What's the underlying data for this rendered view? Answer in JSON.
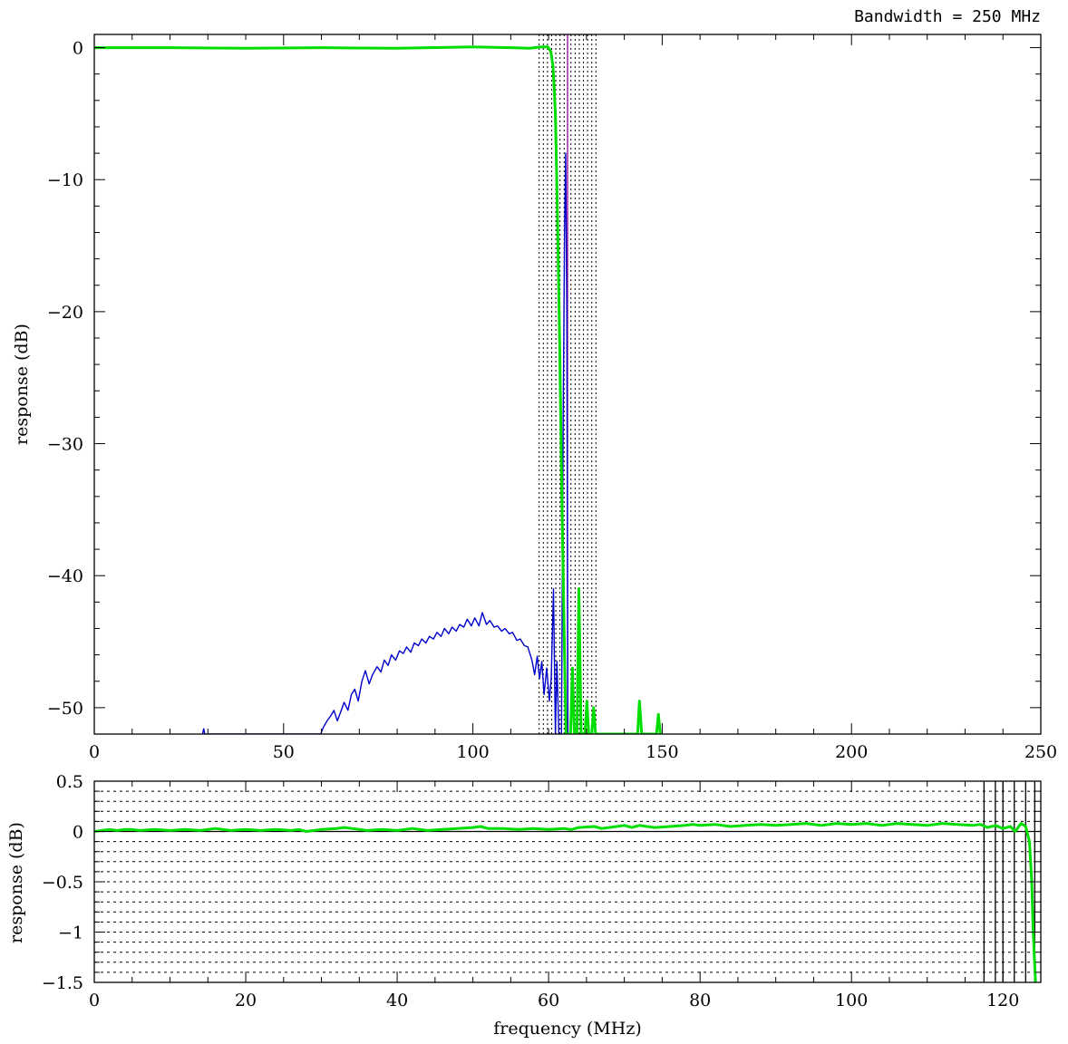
{
  "chart_data": [
    {
      "type": "line",
      "annotation": "Bandwidth = 250 MHz",
      "ylabel": "response (dB)",
      "xlabel": "",
      "xlim": [
        0,
        250
      ],
      "ylim": [
        -52,
        1
      ],
      "xticks": [
        0,
        50,
        100,
        150,
        200,
        250
      ],
      "yticks": [
        0,
        -10,
        -20,
        -30,
        -40,
        -50
      ],
      "vlines_dotted": [
        117.5,
        118.6,
        119.7,
        120.8,
        121.9,
        123.0,
        124.1,
        125.9,
        127.0,
        128.1,
        129.2,
        130.3,
        131.4,
        132.5
      ],
      "vlines_solid": [
        {
          "x": 125.0,
          "color": "#8b008b"
        }
      ],
      "series": [
        {
          "color": "#0000cc",
          "points": [
            [
              28.6,
              -52
            ],
            [
              28.9,
              -51.6
            ],
            [
              29.2,
              -52
            ],
            [
              59.8,
              -52
            ],
            [
              60.5,
              -51.5
            ],
            [
              61.5,
              -51.0
            ],
            [
              62.5,
              -50.6
            ],
            [
              63.3,
              -50.2
            ],
            [
              64.2,
              -51.0
            ],
            [
              65.1,
              -50.3
            ],
            [
              66.0,
              -49.6
            ],
            [
              67.0,
              -50.2
            ],
            [
              67.9,
              -49.0
            ],
            [
              68.8,
              -48.6
            ],
            [
              69.7,
              -49.5
            ],
            [
              70.7,
              -48.0
            ],
            [
              71.6,
              -47.2
            ],
            [
              72.6,
              -48.2
            ],
            [
              73.5,
              -47.5
            ],
            [
              74.7,
              -46.9
            ],
            [
              75.7,
              -47.3
            ],
            [
              76.6,
              -46.4
            ],
            [
              77.6,
              -46.8
            ],
            [
              78.5,
              -46.0
            ],
            [
              79.6,
              -46.4
            ],
            [
              80.6,
              -45.7
            ],
            [
              81.6,
              -45.9
            ],
            [
              82.5,
              -45.4
            ],
            [
              83.6,
              -45.8
            ],
            [
              84.5,
              -45.1
            ],
            [
              85.6,
              -45.3
            ],
            [
              86.5,
              -44.8
            ],
            [
              87.6,
              -45.1
            ],
            [
              88.5,
              -44.6
            ],
            [
              89.6,
              -44.8
            ],
            [
              90.5,
              -44.3
            ],
            [
              91.6,
              -44.6
            ],
            [
              92.5,
              -44.0
            ],
            [
              93.6,
              -44.4
            ],
            [
              94.5,
              -43.9
            ],
            [
              95.6,
              -44.2
            ],
            [
              96.5,
              -43.7
            ],
            [
              97.6,
              -43.9
            ],
            [
              98.5,
              -43.3
            ],
            [
              99.6,
              -43.8
            ],
            [
              100.5,
              -43.2
            ],
            [
              101.6,
              -43.8
            ],
            [
              102.5,
              -42.8
            ],
            [
              103.6,
              -43.7
            ],
            [
              104.5,
              -43.4
            ],
            [
              105.6,
              -43.9
            ],
            [
              106.5,
              -43.8
            ],
            [
              107.6,
              -44.2
            ],
            [
              108.5,
              -44.0
            ],
            [
              109.6,
              -44.4
            ],
            [
              110.5,
              -44.3
            ],
            [
              111.6,
              -44.9
            ],
            [
              112.5,
              -44.8
            ],
            [
              113.6,
              -45.3
            ],
            [
              114.5,
              -45.4
            ],
            [
              115.6,
              -46.4
            ],
            [
              116.3,
              -47.5
            ],
            [
              117.0,
              -46.1
            ],
            [
              117.6,
              -47.8
            ],
            [
              118.2,
              -46.5
            ],
            [
              118.8,
              -49.0
            ],
            [
              119.5,
              -47.0
            ],
            [
              120.2,
              -49.5
            ],
            [
              120.7,
              -47.8
            ],
            [
              121.3,
              -41.0
            ],
            [
              121.8,
              -52
            ],
            [
              122.2,
              -46.5
            ],
            [
              122.7,
              -52
            ],
            [
              123.4,
              -52
            ],
            [
              123.8,
              -30
            ],
            [
              124.2,
              -14
            ],
            [
              124.5,
              -8
            ],
            [
              124.8,
              -20
            ],
            [
              125.1,
              -52
            ]
          ]
        },
        {
          "color": "#00dd00",
          "points": [
            [
              0,
              0
            ],
            [
              20,
              0
            ],
            [
              40,
              -0.05
            ],
            [
              60,
              0
            ],
            [
              80,
              -0.05
            ],
            [
              100,
              0.05
            ],
            [
              110,
              0
            ],
            [
              115,
              -0.05
            ],
            [
              118,
              0.05
            ],
            [
              119,
              0.05
            ],
            [
              119.8,
              0.05
            ],
            [
              120.6,
              -0.3
            ],
            [
              121.2,
              -1.5
            ],
            [
              121.8,
              -5
            ],
            [
              122.3,
              -12
            ],
            [
              122.9,
              -22
            ],
            [
              123.5,
              -34
            ],
            [
              124.2,
              -46
            ],
            [
              124.6,
              -52
            ],
            [
              125.8,
              -52
            ],
            [
              126.3,
              -47
            ],
            [
              126.8,
              -52
            ],
            [
              127.5,
              -52
            ],
            [
              128.0,
              -41
            ],
            [
              128.6,
              -52
            ],
            [
              129.6,
              -52
            ],
            [
              130.1,
              -49.5
            ],
            [
              130.6,
              -52
            ],
            [
              131.4,
              -52
            ],
            [
              131.9,
              -50
            ],
            [
              132.4,
              -52
            ],
            [
              143.5,
              -52
            ],
            [
              144.0,
              -49.5
            ],
            [
              144.6,
              -52
            ],
            [
              148.5,
              -52
            ],
            [
              149.0,
              -50.5
            ],
            [
              149.5,
              -52
            ]
          ]
        }
      ]
    },
    {
      "type": "line",
      "xlabel": "frequency (MHz)",
      "ylabel": "response (dB)",
      "xlim": [
        0,
        125
      ],
      "ylim": [
        -1.5,
        0.5
      ],
      "xticks": [
        0,
        20,
        40,
        60,
        80,
        100,
        120
      ],
      "yticks": [
        0.5,
        0,
        -0.5,
        -1,
        -1.5
      ],
      "yticks_labels": [
        "0.5",
        "0",
        "−0.5",
        "−1",
        "−1.5"
      ],
      "hgrid_dotted_step": 0.1,
      "vlines_solid": [
        117.5,
        119.0,
        120.0,
        121.5,
        123.0,
        124.2
      ],
      "series": [
        {
          "color": "#00dd00",
          "points": [
            [
              0,
              0
            ],
            [
              1,
              0.01
            ],
            [
              2,
              0.02
            ],
            [
              3,
              0.01
            ],
            [
              4,
              0.02
            ],
            [
              5,
              0.02
            ],
            [
              6,
              0.01
            ],
            [
              8,
              0.02
            ],
            [
              10,
              0.01
            ],
            [
              12,
              0.02
            ],
            [
              14,
              0.01
            ],
            [
              16,
              0.03
            ],
            [
              17,
              0.02
            ],
            [
              18,
              0.01
            ],
            [
              20,
              0.02
            ],
            [
              22,
              0.01
            ],
            [
              24,
              0.02
            ],
            [
              26,
              0.01
            ],
            [
              27,
              0.02
            ],
            [
              28,
              0.0
            ],
            [
              29,
              0.01
            ],
            [
              30,
              0.02
            ],
            [
              32,
              0.03
            ],
            [
              33,
              0.04
            ],
            [
              34,
              0.03
            ],
            [
              36,
              0.01
            ],
            [
              38,
              0.02
            ],
            [
              40,
              0.01
            ],
            [
              42,
              0.03
            ],
            [
              44,
              0.01
            ],
            [
              46,
              0.02
            ],
            [
              48,
              0.03
            ],
            [
              50,
              0.04
            ],
            [
              51,
              0.05
            ],
            [
              52,
              0.03
            ],
            [
              54,
              0.03
            ],
            [
              56,
              0.02
            ],
            [
              58,
              0.03
            ],
            [
              60,
              0.02
            ],
            [
              62,
              0.03
            ],
            [
              63,
              0.02
            ],
            [
              64,
              0.04
            ],
            [
              66,
              0.05
            ],
            [
              67,
              0.03
            ],
            [
              68,
              0.04
            ],
            [
              70,
              0.06
            ],
            [
              71,
              0.04
            ],
            [
              72,
              0.06
            ],
            [
              74,
              0.04
            ],
            [
              76,
              0.05
            ],
            [
              78,
              0.06
            ],
            [
              79,
              0.07
            ],
            [
              80,
              0.06
            ],
            [
              82,
              0.07
            ],
            [
              84,
              0.05
            ],
            [
              86,
              0.06
            ],
            [
              88,
              0.07
            ],
            [
              90,
              0.06
            ],
            [
              92,
              0.07
            ],
            [
              94,
              0.08
            ],
            [
              96,
              0.06
            ],
            [
              98,
              0.08
            ],
            [
              100,
              0.07
            ],
            [
              102,
              0.08
            ],
            [
              104,
              0.06
            ],
            [
              106,
              0.08
            ],
            [
              108,
              0.07
            ],
            [
              110,
              0.06
            ],
            [
              112,
              0.08
            ],
            [
              114,
              0.07
            ],
            [
              116,
              0.06
            ],
            [
              117,
              0.07
            ],
            [
              118,
              0.04
            ],
            [
              119,
              0.06
            ],
            [
              120,
              0.03
            ],
            [
              121,
              0.05
            ],
            [
              121.6,
              0.0
            ],
            [
              122.4,
              0.08
            ],
            [
              123.0,
              0.05
            ],
            [
              123.5,
              -0.1
            ],
            [
              123.8,
              -0.5
            ],
            [
              124.0,
              -1.0
            ],
            [
              124.3,
              -1.5
            ]
          ]
        }
      ]
    }
  ]
}
